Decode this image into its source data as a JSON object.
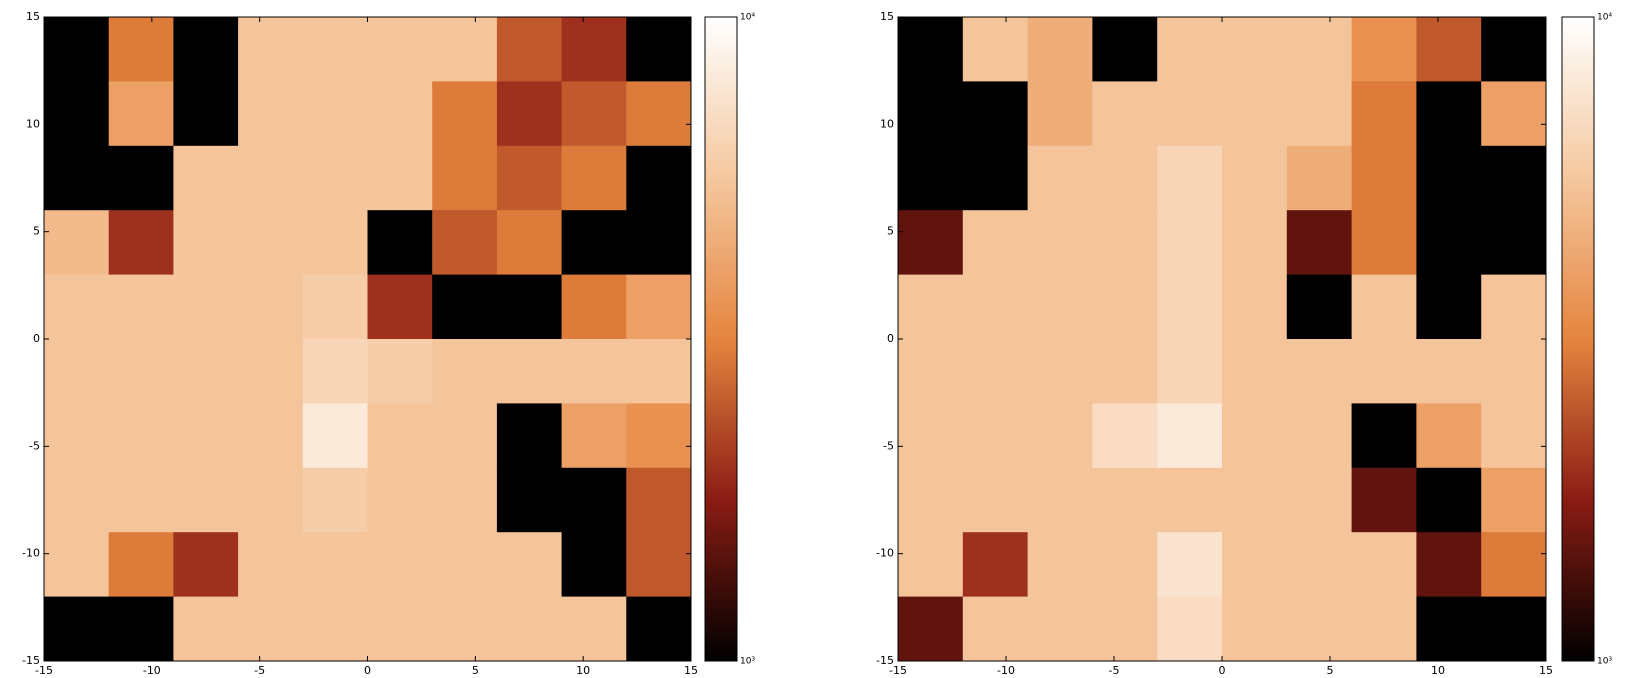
{
  "chart_data": [
    {
      "type": "heatmap",
      "xlim": [
        -15,
        15
      ],
      "ylim": [
        -15,
        15
      ],
      "xticks": [
        -15,
        -10,
        -5,
        0,
        5,
        10,
        15
      ],
      "yticks": [
        -15,
        -10,
        -5,
        0,
        5,
        10,
        15
      ],
      "colormap": [
        "#000000",
        "#8a1c14",
        "#e5853f",
        "#f5c79e",
        "#ffffff"
      ],
      "color_log": true,
      "clim": [
        1000,
        10000
      ],
      "cticks": [
        {
          "value": 1000,
          "label": "10³"
        },
        {
          "value": 10000,
          "label": "10⁴"
        }
      ],
      "z": [
        [
          1000,
          3000,
          1000,
          5500,
          5500,
          5500,
          5500,
          2500,
          2000,
          1000
        ],
        [
          1000,
          4000,
          1000,
          5500,
          5500,
          5500,
          3000,
          2000,
          2500,
          3000
        ],
        [
          1000,
          1000,
          5500,
          5500,
          5500,
          5500,
          3000,
          2500,
          3000,
          1000
        ],
        [
          5000,
          2000,
          5500,
          5500,
          5500,
          1000,
          2500,
          3000,
          1000,
          1000
        ],
        [
          5500,
          5500,
          5500,
          5500,
          6000,
          2000,
          1000,
          1000,
          3000,
          4000
        ],
        [
          5500,
          5500,
          5500,
          5500,
          6500,
          6000,
          5500,
          5500,
          5500,
          5500
        ],
        [
          5500,
          5500,
          5500,
          5500,
          8000,
          5500,
          5500,
          1000,
          4000,
          3500
        ],
        [
          5500,
          5500,
          5500,
          5500,
          6000,
          5500,
          5500,
          1000,
          1000,
          2500
        ],
        [
          5500,
          3000,
          2000,
          5500,
          5500,
          5500,
          5500,
          5500,
          1000,
          2500
        ],
        [
          1000,
          1000,
          5500,
          5500,
          5500,
          5500,
          5500,
          5500,
          5500,
          1000
        ]
      ]
    },
    {
      "type": "heatmap",
      "xlim": [
        -15,
        15
      ],
      "ylim": [
        -15,
        15
      ],
      "xticks": [
        -15,
        -10,
        -5,
        0,
        5,
        10,
        15
      ],
      "yticks": [
        -15,
        -10,
        -5,
        0,
        5,
        10,
        15
      ],
      "colormap": [
        "#000000",
        "#8a1c14",
        "#e5853f",
        "#f5c79e",
        "#ffffff"
      ],
      "color_log": true,
      "clim": [
        1000,
        10000
      ],
      "cticks": [
        {
          "value": 1000,
          "label": "10³"
        },
        {
          "value": 10000,
          "label": "10⁴"
        }
      ],
      "z": [
        [
          1000,
          5500,
          4500,
          1000,
          5500,
          5500,
          5500,
          3500,
          2500,
          1000
        ],
        [
          1000,
          1000,
          4500,
          5500,
          5500,
          5500,
          5500,
          3000,
          1000,
          4000
        ],
        [
          1000,
          1000,
          5500,
          5500,
          6500,
          5500,
          4500,
          3000,
          1000,
          1000
        ],
        [
          1500,
          5500,
          5500,
          5500,
          6500,
          5500,
          1500,
          3000,
          1000,
          1000
        ],
        [
          5500,
          5500,
          5500,
          5500,
          6500,
          5500,
          1000,
          5500,
          1000,
          5500
        ],
        [
          5500,
          5500,
          5500,
          5500,
          6500,
          5500,
          5500,
          5500,
          5500,
          5500
        ],
        [
          5500,
          5500,
          5500,
          7000,
          8000,
          5500,
          5500,
          1000,
          4000,
          5500
        ],
        [
          5500,
          5500,
          5500,
          5500,
          5500,
          5500,
          5500,
          1500,
          1000,
          4000
        ],
        [
          5500,
          2000,
          5500,
          5500,
          7500,
          5500,
          5500,
          5500,
          1500,
          3000
        ],
        [
          1500,
          5500,
          5500,
          5500,
          7000,
          5500,
          5500,
          5500,
          1000,
          1000
        ]
      ]
    }
  ]
}
